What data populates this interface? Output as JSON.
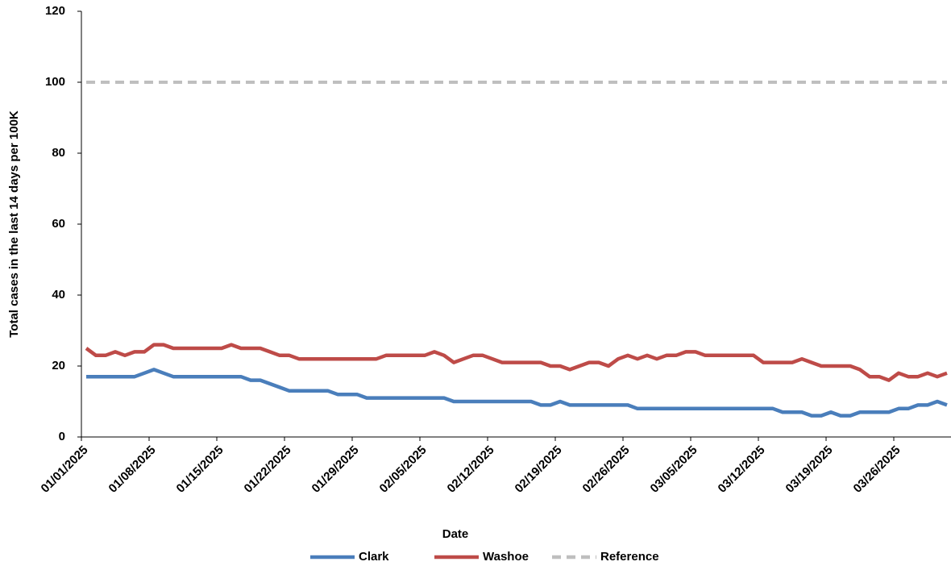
{
  "chart_data": {
    "type": "line",
    "x_label": "Date",
    "y_label": "Total cases in the last 14 days per 100K",
    "categories": [
      "01/01/2025",
      null,
      null,
      null,
      null,
      null,
      null,
      "01/08/2025",
      null,
      null,
      null,
      null,
      null,
      null,
      "01/15/2025",
      null,
      null,
      null,
      null,
      null,
      null,
      "01/22/2025",
      null,
      null,
      null,
      null,
      null,
      null,
      "01/29/2025",
      null,
      null,
      null,
      null,
      null,
      null,
      "02/05/2025",
      null,
      null,
      null,
      null,
      null,
      null,
      "02/12/2025",
      null,
      null,
      null,
      null,
      null,
      null,
      "02/19/2025",
      null,
      null,
      null,
      null,
      null,
      null,
      "02/26/2025",
      null,
      null,
      null,
      null,
      null,
      null,
      "03/05/2025",
      null,
      null,
      null,
      null,
      null,
      null,
      "03/12/2025",
      null,
      null,
      null,
      null,
      null,
      null,
      "03/19/2025",
      null,
      null,
      null,
      null,
      null,
      null,
      "03/26/2025",
      null,
      null,
      null,
      null,
      null
    ],
    "series": [
      {
        "name": "Clark",
        "color": "#4a7ebb",
        "dashed": false,
        "values": [
          17,
          17,
          17,
          17,
          17,
          17,
          18,
          19,
          18,
          17,
          17,
          17,
          17,
          17,
          17,
          17,
          17,
          16,
          16,
          15,
          14,
          13,
          13,
          13,
          13,
          13,
          12,
          12,
          12,
          11,
          11,
          11,
          11,
          11,
          11,
          11,
          11,
          11,
          10,
          10,
          10,
          10,
          10,
          10,
          10,
          10,
          10,
          9,
          9,
          10,
          9,
          9,
          9,
          9,
          9,
          9,
          9,
          8,
          8,
          8,
          8,
          8,
          8,
          8,
          8,
          8,
          8,
          8,
          8,
          8,
          8,
          8,
          7,
          7,
          7,
          6,
          6,
          7,
          6,
          6,
          7,
          7,
          7,
          7,
          8,
          8,
          9,
          9,
          10,
          9
        ]
      },
      {
        "name": "Washoe",
        "color": "#be4b48",
        "dashed": false,
        "values": [
          25,
          23,
          23,
          24,
          23,
          24,
          24,
          26,
          26,
          25,
          25,
          25,
          25,
          25,
          25,
          26,
          25,
          25,
          25,
          24,
          23,
          23,
          22,
          22,
          22,
          22,
          22,
          22,
          22,
          22,
          22,
          23,
          23,
          23,
          23,
          23,
          24,
          23,
          21,
          22,
          23,
          23,
          22,
          21,
          21,
          21,
          21,
          21,
          20,
          20,
          19,
          20,
          21,
          21,
          20,
          22,
          23,
          22,
          23,
          22,
          23,
          23,
          24,
          24,
          23,
          23,
          23,
          23,
          23,
          23,
          21,
          21,
          21,
          21,
          22,
          21,
          20,
          20,
          20,
          20,
          19,
          17,
          17,
          16,
          18,
          17,
          17,
          18,
          17,
          18
        ]
      },
      {
        "name": "Reference",
        "color": "#bfbfbf",
        "dashed": true,
        "values": [
          100,
          100,
          100,
          100,
          100,
          100,
          100,
          100,
          100,
          100,
          100,
          100,
          100,
          100,
          100,
          100,
          100,
          100,
          100,
          100,
          100,
          100,
          100,
          100,
          100,
          100,
          100,
          100,
          100,
          100,
          100,
          100,
          100,
          100,
          100,
          100,
          100,
          100,
          100,
          100,
          100,
          100,
          100,
          100,
          100,
          100,
          100,
          100,
          100,
          100,
          100,
          100,
          100,
          100,
          100,
          100,
          100,
          100,
          100,
          100,
          100,
          100,
          100,
          100,
          100,
          100,
          100,
          100,
          100,
          100,
          100,
          100,
          100,
          100,
          100,
          100,
          100,
          100,
          100,
          100,
          100,
          100,
          100,
          100,
          100,
          100,
          100,
          100,
          100,
          100
        ]
      }
    ],
    "ylim": [
      0,
      120
    ],
    "yticks": [
      0,
      20,
      40,
      60,
      80,
      100,
      120
    ],
    "grid": false,
    "legend": "bottom"
  }
}
